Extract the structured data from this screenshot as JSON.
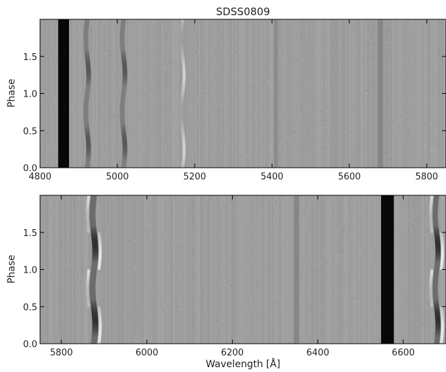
{
  "chart_data": [
    {
      "type": "heatmap",
      "title": "SDSS0809",
      "xlabel": "",
      "ylabel": "Phase",
      "xlim": [
        4800,
        5850
      ],
      "ylim": [
        0.0,
        2.0
      ],
      "x_ticks": [
        4800,
        5000,
        5200,
        5400,
        5600,
        5800
      ],
      "y_ticks": [
        0.0,
        0.5,
        1.0,
        1.5
      ],
      "background_level": 0.62,
      "features": [
        {
          "kind": "absorption",
          "center": 4861,
          "width": 28,
          "depth": 0.95
        },
        {
          "kind": "absorption",
          "center": 4922,
          "width": 12,
          "depth": 0.45,
          "modulated": true
        },
        {
          "kind": "absorption",
          "center": 5016,
          "width": 12,
          "depth": 0.45,
          "modulated": true
        },
        {
          "kind": "emission",
          "center": 5169,
          "width": 8,
          "strength": 0.2
        },
        {
          "kind": "absorption",
          "center": 5410,
          "width": 10,
          "depth": 0.12
        },
        {
          "kind": "absorption",
          "center": 5680,
          "width": 14,
          "depth": 0.15
        }
      ]
    },
    {
      "type": "heatmap",
      "title": "",
      "xlabel": "Wavelength [Å]",
      "ylabel": "Phase",
      "xlim": [
        5750,
        6700
      ],
      "ylim": [
        0.0,
        2.0
      ],
      "x_ticks": [
        5800,
        6000,
        6200,
        6400,
        6600
      ],
      "y_ticks": [
        0.0,
        0.5,
        1.0,
        1.5
      ],
      "background_level": 0.62,
      "features": [
        {
          "kind": "absorption",
          "center": 5876,
          "width": 14,
          "depth": 0.7,
          "modulated": true,
          "emission_sidelobe": true
        },
        {
          "kind": "absorption",
          "center": 6350,
          "width": 12,
          "depth": 0.15
        },
        {
          "kind": "absorption",
          "center": 6563,
          "width": 30,
          "depth": 0.95
        },
        {
          "kind": "absorption",
          "center": 6678,
          "width": 12,
          "depth": 0.7,
          "modulated": true,
          "emission_sidelobe": true
        }
      ]
    }
  ]
}
